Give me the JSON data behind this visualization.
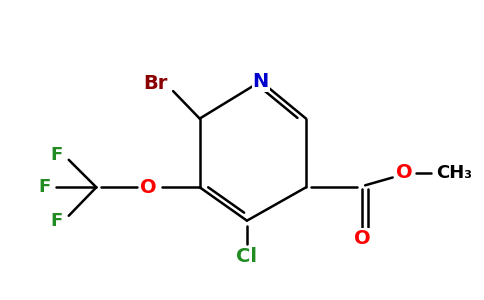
{
  "background_color": "#ffffff",
  "figure_size": [
    4.84,
    3.0
  ],
  "dpi": 100,
  "bond_color": "#000000",
  "bond_lw": 1.8,
  "colors": {
    "N": "#0000cc",
    "Br": "#8b0000",
    "F": "#228b22",
    "O": "#ff0000",
    "Cl": "#228b22",
    "C": "#000000"
  }
}
